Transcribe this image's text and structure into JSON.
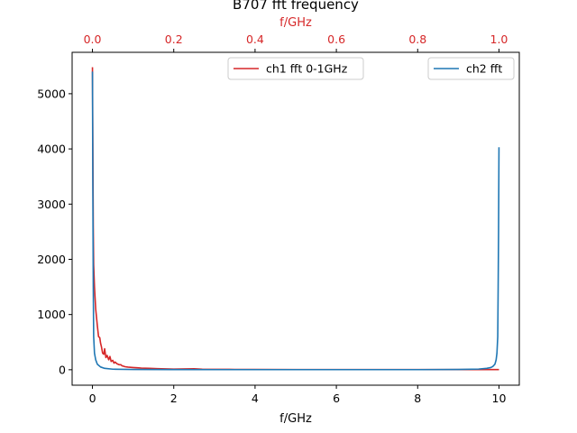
{
  "chart_data": {
    "type": "line",
    "title": "B707 fft frequency",
    "xlabel": "f/GHz",
    "top_xlabel": "f/GHz",
    "bottom_axis": {
      "xlim": [
        -0.5,
        10.5
      ],
      "ticks": [
        0,
        2,
        4,
        6,
        8,
        10
      ],
      "tick_labels": [
        "0",
        "2",
        "4",
        "6",
        "8",
        "10"
      ]
    },
    "top_axis": {
      "xlim": [
        -0.05,
        1.05
      ],
      "ticks": [
        0.0,
        0.2,
        0.4,
        0.6,
        0.8,
        1.0
      ],
      "tick_labels": [
        "0.0",
        "0.2",
        "0.4",
        "0.6",
        "0.8",
        "1.0"
      ],
      "color": "#d62728"
    },
    "y_axis": {
      "ylim": [
        -280,
        5750
      ],
      "ticks": [
        0,
        1000,
        2000,
        3000,
        4000,
        5000
      ],
      "tick_labels": [
        "0",
        "1000",
        "2000",
        "3000",
        "4000",
        "5000"
      ]
    },
    "series": [
      {
        "name": "ch1 fft 0-1GHz",
        "axis": "top",
        "color": "#d62728",
        "x": [
          0.0,
          0.001,
          0.002,
          0.003,
          0.005,
          0.008,
          0.012,
          0.015,
          0.018,
          0.02,
          0.022,
          0.025,
          0.028,
          0.03,
          0.033,
          0.036,
          0.04,
          0.043,
          0.046,
          0.05,
          0.053,
          0.056,
          0.06,
          0.063,
          0.066,
          0.07,
          0.073,
          0.076,
          0.08,
          0.085,
          0.09,
          0.1,
          0.11,
          0.12,
          0.14,
          0.16,
          0.18,
          0.2,
          0.25,
          0.27,
          0.3,
          0.35,
          0.4,
          0.5,
          0.6,
          0.7,
          0.8,
          0.9,
          0.95,
          0.98,
          1.0
        ],
        "y": [
          5480,
          4000,
          2600,
          1900,
          1500,
          1100,
          800,
          600,
          580,
          480,
          420,
          300,
          280,
          380,
          220,
          260,
          180,
          240,
          150,
          170,
          120,
          140,
          110,
          100,
          90,
          90,
          70,
          65,
          55,
          50,
          45,
          40,
          35,
          30,
          25,
          20,
          15,
          12,
          18,
          10,
          8,
          6,
          5,
          4,
          3,
          3,
          3,
          3,
          3,
          3,
          3
        ]
      },
      {
        "name": "ch2 fft",
        "axis": "bottom",
        "color": "#1f77b4",
        "x": [
          0.0,
          0.01,
          0.02,
          0.03,
          0.05,
          0.08,
          0.12,
          0.2,
          0.3,
          0.5,
          1.0,
          2.0,
          3.0,
          4.0,
          5.0,
          6.0,
          7.0,
          8.0,
          9.0,
          9.5,
          9.7,
          9.8,
          9.85,
          9.9,
          9.93,
          9.95,
          9.97,
          9.98,
          9.99,
          10.0
        ],
        "y": [
          5400,
          3200,
          1500,
          600,
          300,
          180,
          100,
          50,
          25,
          10,
          5,
          3,
          2,
          2,
          2,
          2,
          2,
          2,
          5,
          12,
          25,
          40,
          60,
          100,
          180,
          300,
          600,
          1500,
          2500,
          4030
        ]
      }
    ],
    "legends": [
      {
        "entries": [
          "ch1 fft 0-1GHz"
        ],
        "placement": "upper-center"
      },
      {
        "entries": [
          "ch2 fft"
        ],
        "placement": "upper-right"
      }
    ],
    "grid": false
  }
}
